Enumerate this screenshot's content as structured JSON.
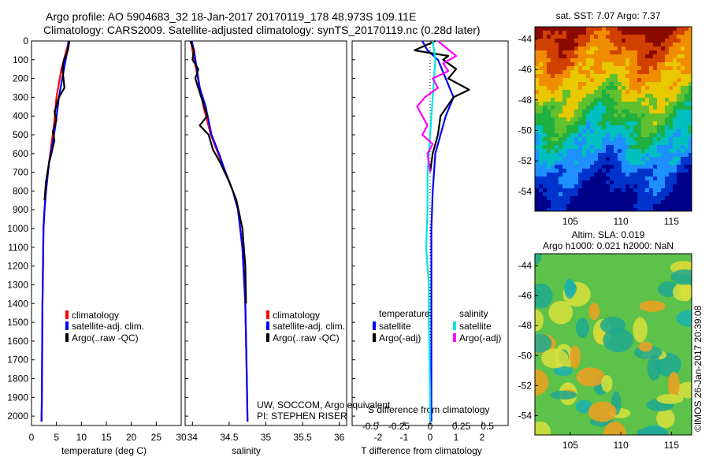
{
  "header": {
    "title_line1": "Argo profile: AO 5904683_32 18-Jan-2017 20170119_178 48.973S 109.11E",
    "title_line2": "Climatology: CARS2009. Satellite-adjusted climatology: synTS_20170119.nc (0.28d later)"
  },
  "legend": {
    "climatology": "climatology",
    "satellite_adj": "satellite-adj. clim.",
    "argo": "Argo(..raw -QC)",
    "temperature_head": "temperature",
    "salinity_head": "salinity",
    "satellite": "satellite",
    "argo_adj": "Argo(-adj)"
  },
  "colors": {
    "climatology": "#ff0000",
    "satellite": "#0000ff",
    "argo": "#000000",
    "sal_satellite": "#00e5e5",
    "sal_argo": "#ff00ff"
  },
  "annotations": {
    "credit1": "UW, SOCCOM, Argo equivalent",
    "credit2": "PI: STEPHEN RISER",
    "imos": "©IMOS 26-Jan-2017 20:39:08"
  },
  "chart_data": [
    {
      "type": "line",
      "xlabel": "temperature (deg C)",
      "xlim": [
        0,
        30
      ],
      "ylim": [
        2050,
        0
      ],
      "xticks": [
        0,
        5,
        10,
        15,
        20,
        25,
        30
      ],
      "yticks": [
        0,
        100,
        200,
        300,
        400,
        500,
        600,
        700,
        800,
        900,
        1000,
        1100,
        1200,
        1300,
        1400,
        1500,
        1600,
        1700,
        1800,
        1900,
        2000
      ],
      "series": [
        {
          "name": "climatology",
          "color": "#ff0000",
          "x": [
            7.5,
            7.0,
            6.0,
            5.0,
            4.5,
            4.0,
            3.5,
            2.9,
            2.6,
            2.4,
            2.3,
            2.2,
            2.15,
            2.1,
            2.05,
            2.0
          ],
          "y": [
            0,
            50,
            150,
            300,
            450,
            550,
            650,
            800,
            900,
            1000,
            1200,
            1400,
            1600,
            1800,
            1950,
            2030
          ]
        },
        {
          "name": "satellite-adj. clim.",
          "color": "#0000ff",
          "x": [
            7.4,
            7.2,
            6.5,
            5.5,
            4.8,
            4.2,
            3.5,
            2.9,
            2.6,
            2.4,
            2.3,
            2.2,
            2.15,
            2.1,
            2.05,
            2.0
          ],
          "y": [
            0,
            50,
            150,
            300,
            450,
            550,
            650,
            800,
            900,
            1000,
            1200,
            1400,
            1600,
            1800,
            1950,
            2030
          ]
        },
        {
          "name": "Argo(..raw -QC)",
          "color": "#000000",
          "x": [
            7.6,
            7.3,
            6.5,
            6.2,
            6.6,
            5.5,
            4.6,
            5.0,
            4.3,
            4.6,
            4.0,
            3.5,
            2.9,
            2.6
          ],
          "y": [
            0,
            50,
            100,
            150,
            250,
            300,
            380,
            420,
            480,
            530,
            600,
            650,
            750,
            850
          ]
        }
      ]
    },
    {
      "type": "line",
      "xlabel": "salinity",
      "xlim": [
        33.9,
        36.1
      ],
      "ylim": [
        2050,
        0
      ],
      "xticks": [
        34,
        34.5,
        35,
        35.5,
        36
      ],
      "yticks": [],
      "series": [
        {
          "name": "climatology",
          "color": "#ff0000",
          "x": [
            33.98,
            34.0,
            34.05,
            34.1,
            34.15,
            34.25,
            34.35,
            34.45,
            34.55,
            34.62,
            34.68,
            34.72,
            34.74,
            34.75
          ],
          "y": [
            0,
            50,
            150,
            250,
            350,
            500,
            600,
            700,
            800,
            900,
            1100,
            1400,
            1800,
            2030
          ]
        },
        {
          "name": "satellite-adj. clim.",
          "color": "#0000ff",
          "x": [
            33.99,
            34.02,
            34.06,
            34.1,
            34.18,
            34.26,
            34.36,
            34.45,
            34.55,
            34.62,
            34.68,
            34.72,
            34.74,
            34.75
          ],
          "y": [
            0,
            50,
            150,
            250,
            350,
            500,
            600,
            700,
            800,
            900,
            1100,
            1400,
            1800,
            2030
          ]
        },
        {
          "name": "Argo(..raw -QC)",
          "color": "#000000",
          "x": [
            33.97,
            34.02,
            34.0,
            34.08,
            34.04,
            34.12,
            34.2,
            34.1,
            34.22,
            34.28,
            34.38,
            34.5,
            34.6,
            34.68,
            34.72,
            34.73
          ],
          "y": [
            0,
            50,
            100,
            150,
            200,
            300,
            400,
            450,
            500,
            580,
            650,
            750,
            850,
            1000,
            1200,
            1400
          ]
        }
      ]
    },
    {
      "type": "line",
      "xlabel": "T difference from climatology",
      "xlabel2": "S difference from climatology",
      "xlim": [
        -3,
        3
      ],
      "ylim": [
        2050,
        0
      ],
      "xticks": [
        -2,
        -1,
        0,
        1,
        2
      ],
      "xticks2_labels": [
        "-0.5",
        "-0.25",
        "0",
        "0.25",
        "0.5"
      ],
      "xticks2_pos": [
        -2.3,
        -1.2,
        0,
        1.2,
        2.2
      ],
      "yticks": [],
      "series": [
        {
          "name": "temperature satellite",
          "color": "#0000ff",
          "x": [
            -0.3,
            -0.1,
            0.3,
            0.6,
            0.9,
            0.6,
            0.4,
            0.2,
            0.1,
            0.05,
            0.05,
            0.05,
            0.05
          ],
          "y": [
            0,
            50,
            100,
            200,
            300,
            400,
            500,
            600,
            800,
            1000,
            1400,
            1800,
            2030
          ]
        },
        {
          "name": "temperature Argo(-adj)",
          "color": "#000000",
          "x": [
            0.2,
            -0.6,
            0.7,
            0.5,
            1.0,
            0.7,
            1.5,
            0.9,
            0.4,
            0.3,
            0.1,
            0.0
          ],
          "y": [
            0,
            50,
            80,
            100,
            150,
            200,
            260,
            300,
            400,
            500,
            600,
            700
          ]
        },
        {
          "name": "salinity satellite",
          "color": "#00e5e5",
          "x": [
            0.1,
            0.2,
            0.1,
            0.0,
            -0.1,
            -0.1,
            -0.15,
            -0.05,
            -0.05,
            -0.02,
            0.0,
            0.0
          ],
          "y": [
            0,
            100,
            300,
            500,
            700,
            900,
            1100,
            1300,
            1500,
            1700,
            1900,
            2030
          ]
        },
        {
          "name": "salinity Argo(-adj)",
          "color": "#ff00ff",
          "x": [
            0.3,
            1.0,
            0.5,
            0.7,
            0.1,
            0.3,
            -0.2,
            -0.5,
            -0.1,
            -0.3,
            0.1,
            -0.1,
            0.0
          ],
          "y": [
            0,
            80,
            120,
            160,
            200,
            250,
            300,
            350,
            450,
            500,
            550,
            600,
            700
          ]
        }
      ]
    },
    {
      "type": "heatmap",
      "title": "sat. SST: 7.07 Argo: 7.37",
      "xticks": [
        105,
        110,
        115
      ],
      "yticks": [
        -44,
        -46,
        -48,
        -50,
        -52,
        -54
      ],
      "xlim": [
        101.5,
        117
      ],
      "ylim": [
        -55.3,
        -43.2
      ]
    },
    {
      "type": "heatmap",
      "title": "Altim. SLA: 0.019",
      "subtitle": "Argo h1000: 0.021 h2000: NaN",
      "xticks": [
        105,
        110,
        115
      ],
      "yticks": [
        -44,
        -46,
        -48,
        -50,
        -52,
        -54
      ],
      "xlim": [
        101.5,
        117
      ],
      "ylim": [
        -55.3,
        -43.2
      ]
    }
  ]
}
